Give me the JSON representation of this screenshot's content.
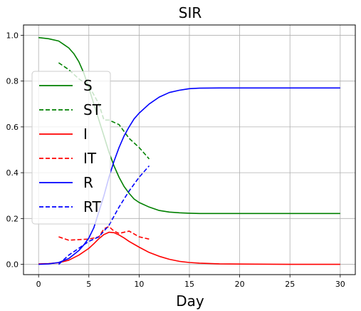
{
  "chart_data": {
    "type": "line",
    "title": "SIR",
    "xlabel": "Day",
    "ylabel": "",
    "xlim": [
      -1.5,
      31.5
    ],
    "ylim": [
      -0.045,
      1.045
    ],
    "xticks": [
      0,
      5,
      10,
      15,
      20,
      25,
      30
    ],
    "yticks": [
      0.0,
      0.2,
      0.4,
      0.6,
      0.8,
      1.0
    ],
    "xtick_labels": [
      "0",
      "5",
      "10",
      "15",
      "20",
      "25",
      "30"
    ],
    "ytick_labels": [
      "0.0",
      "0.2",
      "0.4",
      "0.6",
      "0.8",
      "1.0"
    ],
    "grid": true,
    "legend_position": "left",
    "series": [
      {
        "name": "S",
        "color": "#008000",
        "style": "solid",
        "x": [
          0,
          1,
          2,
          2.5,
          3,
          3.5,
          4,
          4.5,
          5,
          5.5,
          6,
          6.5,
          7,
          7.5,
          8,
          8.5,
          9,
          9.5,
          10,
          11,
          12,
          13,
          14,
          15,
          16,
          18,
          20,
          25,
          30
        ],
        "y": [
          0.99,
          0.985,
          0.975,
          0.96,
          0.945,
          0.92,
          0.885,
          0.835,
          0.77,
          0.7,
          0.63,
          0.56,
          0.49,
          0.43,
          0.38,
          0.34,
          0.31,
          0.285,
          0.27,
          0.25,
          0.235,
          0.228,
          0.225,
          0.223,
          0.222,
          0.222,
          0.222,
          0.222,
          0.222
        ]
      },
      {
        "name": "ST",
        "color": "#008000",
        "style": "dashed",
        "x": [
          2,
          3,
          4,
          5,
          6,
          6.5,
          7,
          8,
          9,
          10,
          11
        ],
        "y": [
          0.88,
          0.85,
          0.81,
          0.78,
          0.7,
          0.63,
          0.63,
          0.61,
          0.55,
          0.51,
          0.46
        ]
      },
      {
        "name": "I",
        "color": "#ff0000",
        "style": "solid",
        "x": [
          0,
          1,
          2,
          3,
          4,
          5,
          5.5,
          6,
          6.5,
          7,
          7.5,
          8,
          8.5,
          9,
          10,
          11,
          12,
          13,
          14,
          15,
          16,
          18,
          20,
          25,
          30
        ],
        "y": [
          0.002,
          0.003,
          0.007,
          0.018,
          0.04,
          0.07,
          0.09,
          0.112,
          0.13,
          0.14,
          0.138,
          0.128,
          0.115,
          0.1,
          0.075,
          0.052,
          0.035,
          0.022,
          0.013,
          0.008,
          0.005,
          0.002,
          0.001,
          0.0,
          0.0
        ]
      },
      {
        "name": "IT",
        "color": "#ff0000",
        "style": "dashed",
        "x": [
          2,
          3,
          4,
          5,
          6,
          6.5,
          7,
          7.5,
          8,
          9,
          10,
          11
        ],
        "y": [
          0.12,
          0.105,
          0.108,
          0.11,
          0.12,
          0.155,
          0.165,
          0.145,
          0.135,
          0.145,
          0.12,
          0.11
        ]
      },
      {
        "name": "R",
        "color": "#0000ff",
        "style": "solid",
        "x": [
          0,
          1,
          2,
          3,
          4,
          4.5,
          5,
          5.5,
          6,
          6.5,
          7,
          7.5,
          8,
          8.5,
          9,
          9.5,
          10,
          11,
          12,
          13,
          14,
          15,
          16,
          18,
          20,
          25,
          30
        ],
        "y": [
          0.0,
          0.002,
          0.008,
          0.025,
          0.06,
          0.085,
          0.115,
          0.16,
          0.23,
          0.3,
          0.38,
          0.45,
          0.51,
          0.56,
          0.6,
          0.635,
          0.66,
          0.7,
          0.73,
          0.75,
          0.76,
          0.767,
          0.769,
          0.77,
          0.77,
          0.77,
          0.77
        ]
      },
      {
        "name": "RT",
        "color": "#0000ff",
        "style": "dashed",
        "x": [
          2,
          3,
          4,
          5,
          6,
          7,
          8,
          9,
          10,
          11
        ],
        "y": [
          0.0,
          0.04,
          0.07,
          0.1,
          0.12,
          0.17,
          0.25,
          0.32,
          0.38,
          0.43
        ]
      }
    ]
  }
}
